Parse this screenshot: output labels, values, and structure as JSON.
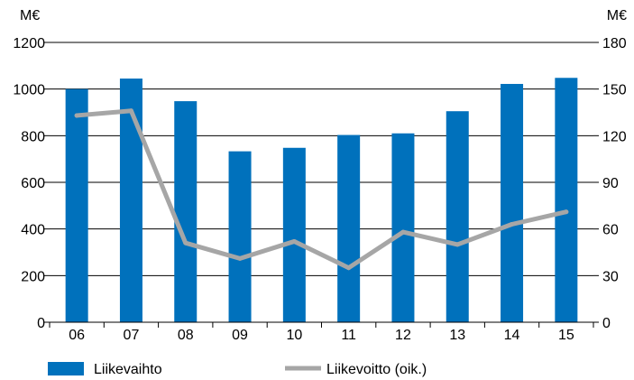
{
  "chart_data": {
    "type": "bar",
    "categories": [
      "06",
      "07",
      "08",
      "09",
      "10",
      "11",
      "12",
      "13",
      "14",
      "15"
    ],
    "series": [
      {
        "name": "Liikevaihto",
        "type": "bar",
        "axis": "left",
        "color": "#0071bc",
        "values": [
          1000,
          1045,
          948,
          733,
          748,
          803,
          810,
          905,
          1022,
          1048
        ]
      },
      {
        "name": "Liikevoitto (oik.)",
        "type": "line",
        "axis": "right",
        "color": "#a6a6a6",
        "values": [
          133,
          136,
          51,
          41,
          52,
          35,
          58,
          50,
          63,
          71
        ]
      }
    ],
    "left_axis": {
      "unit": "M€",
      "min": 0,
      "max": 1200,
      "ticks": [
        0,
        200,
        400,
        600,
        800,
        1000,
        1200
      ]
    },
    "right_axis": {
      "unit": "M€",
      "min": 0,
      "max": 180,
      "ticks": [
        0,
        30,
        60,
        90,
        120,
        150,
        180
      ]
    },
    "grid": true,
    "legend_position": "bottom"
  }
}
